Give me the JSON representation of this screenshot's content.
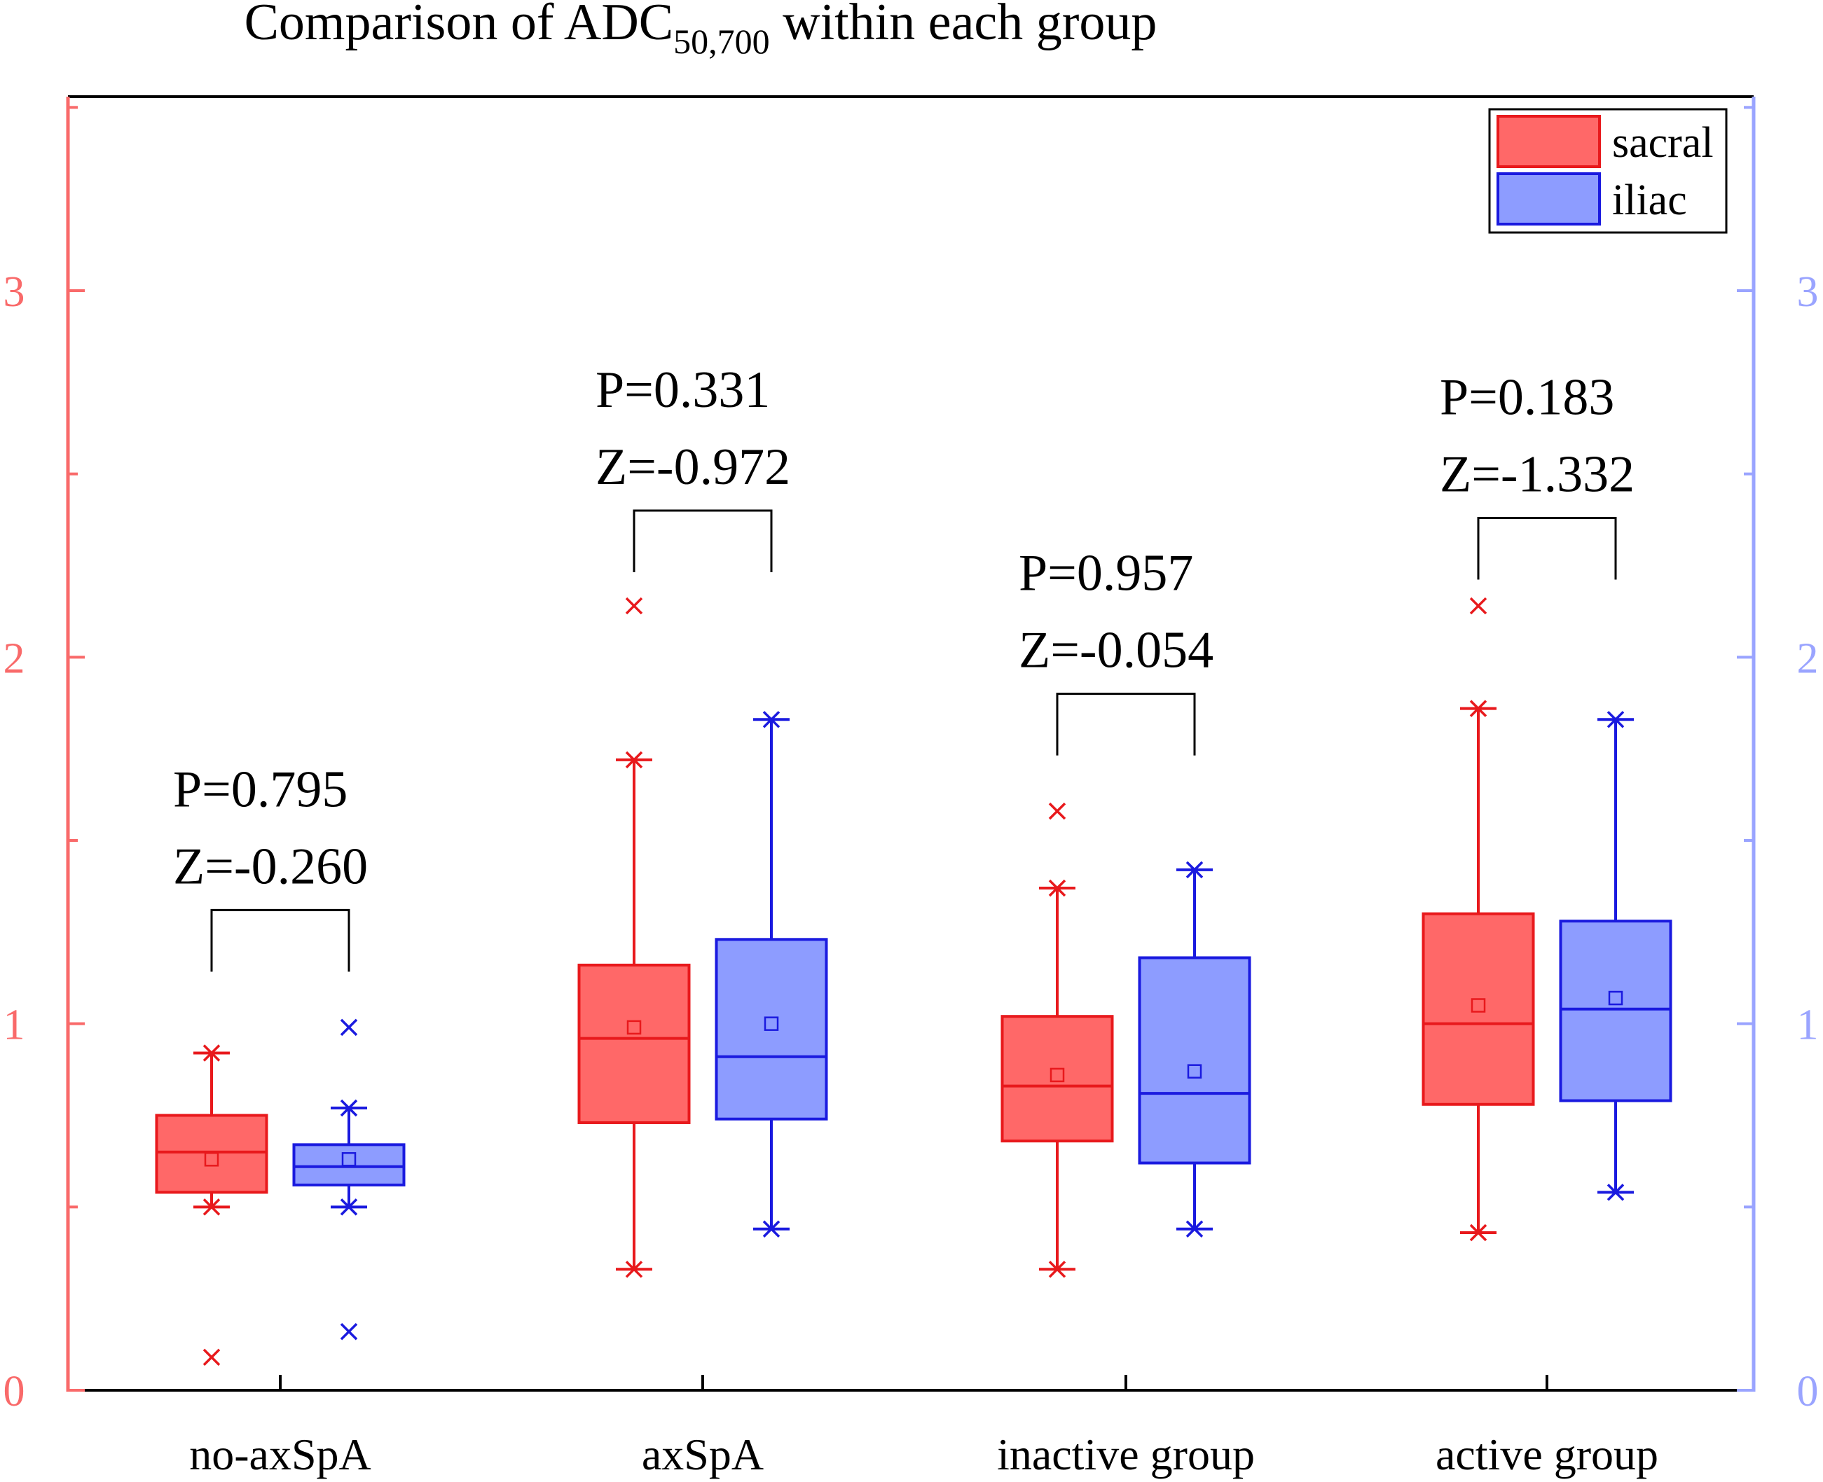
{
  "chart_data": {
    "type": "box",
    "title_main": "Comparison of ADC",
    "title_sub": "50,700",
    "title_rest": " within each group",
    "ylim": [
      0,
      3.5
    ],
    "left_ticks": [
      "0",
      "1",
      "2",
      "3"
    ],
    "right_ticks": [
      "0",
      "1",
      "2",
      "3"
    ],
    "categories": [
      "no-axSpA",
      "axSpA",
      "inactive group",
      "active group"
    ],
    "colors": {
      "sacral_fill": "#ff6868",
      "sacral_stroke": "#e8191c",
      "iliac_fill": "#8d9cff",
      "iliac_stroke": "#1a1adf",
      "left_axis": "#f96a6a",
      "right_axis": "#9aa4ff"
    },
    "legend": [
      {
        "key": "sacral",
        "label": "sacral"
      },
      {
        "key": "iliac",
        "label": "iliac"
      }
    ],
    "series": [
      {
        "name": "sacral",
        "boxes": [
          {
            "category": "no-axSpA",
            "whisker_low": 0.5,
            "q1": 0.54,
            "median": 0.65,
            "q3": 0.75,
            "whisker_high": 0.92,
            "mean": 0.63,
            "outliers": [
              0.09
            ]
          },
          {
            "category": "axSpA",
            "whisker_low": 0.33,
            "q1": 0.73,
            "median": 0.96,
            "q3": 1.16,
            "whisker_high": 1.72,
            "mean": 0.99,
            "outliers": [
              2.14
            ]
          },
          {
            "category": "inactive group",
            "whisker_low": 0.33,
            "q1": 0.68,
            "median": 0.83,
            "q3": 1.02,
            "whisker_high": 1.37,
            "mean": 0.86,
            "outliers": [
              1.58
            ]
          },
          {
            "category": "active group",
            "whisker_low": 0.43,
            "q1": 0.78,
            "median": 1.0,
            "q3": 1.3,
            "whisker_high": 1.86,
            "mean": 1.05,
            "outliers": [
              2.14
            ]
          }
        ]
      },
      {
        "name": "iliac",
        "boxes": [
          {
            "category": "no-axSpA",
            "whisker_low": 0.5,
            "q1": 0.56,
            "median": 0.61,
            "q3": 0.67,
            "whisker_high": 0.77,
            "mean": 0.63,
            "outliers": [
              0.16,
              0.99
            ]
          },
          {
            "category": "axSpA",
            "whisker_low": 0.44,
            "q1": 0.74,
            "median": 0.91,
            "q3": 1.23,
            "whisker_high": 1.83,
            "mean": 1.0,
            "outliers": []
          },
          {
            "category": "inactive group",
            "whisker_low": 0.44,
            "q1": 0.62,
            "median": 0.81,
            "q3": 1.18,
            "whisker_high": 1.42,
            "mean": 0.87,
            "outliers": []
          },
          {
            "category": "active group",
            "whisker_low": 0.54,
            "q1": 0.79,
            "median": 1.04,
            "q3": 1.28,
            "whisker_high": 1.83,
            "mean": 1.07,
            "outliers": []
          }
        ]
      }
    ],
    "comparisons": [
      {
        "category": "no-axSpA",
        "p_text": "P=0.795",
        "z_text": "Z=-0.260",
        "bracket_y": 1.31
      },
      {
        "category": "axSpA",
        "p_text": "P=0.331",
        "z_text": "Z=-0.972",
        "bracket_y": 2.4
      },
      {
        "category": "inactive group",
        "p_text": "P=0.957",
        "z_text": "Z=-0.054",
        "bracket_y": 1.9
      },
      {
        "category": "active group",
        "p_text": "P=0.183",
        "z_text": "Z=-1.332",
        "bracket_y": 2.38
      }
    ]
  }
}
